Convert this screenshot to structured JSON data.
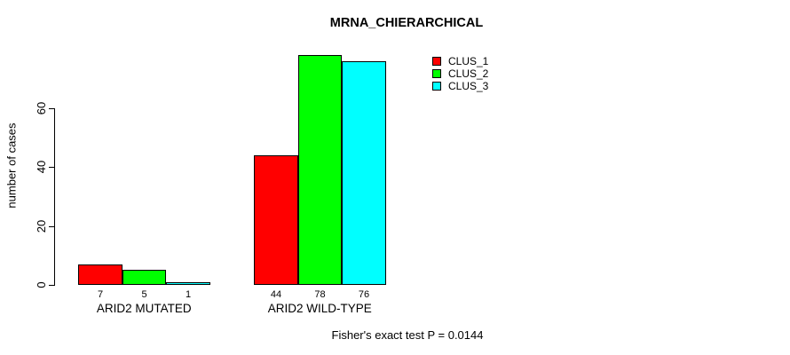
{
  "title": "MRNA_CHIERARCHICAL",
  "footer_note": "Fisher's exact test P = 0.0144",
  "chart_data": {
    "type": "bar",
    "title": "MRNA_CHIERARCHICAL",
    "xlabel": "",
    "ylabel": "number of cases",
    "categories": [
      "ARID2 MUTATED",
      "ARID2 WILD-TYPE"
    ],
    "series": [
      {
        "name": "CLUS_1",
        "color": "#ff0000",
        "values": [
          7,
          44
        ]
      },
      {
        "name": "CLUS_2",
        "color": "#00ff00",
        "values": [
          5,
          78
        ]
      },
      {
        "name": "CLUS_3",
        "color": "#00ffff",
        "values": [
          1,
          76
        ]
      }
    ],
    "bar_value_labels": [
      [
        7,
        5,
        1
      ],
      [
        44,
        78,
        76
      ]
    ],
    "yticks": [
      0,
      20,
      40,
      60
    ],
    "ylim": [
      0,
      78
    ],
    "grid": false,
    "legend_position": "top-right",
    "legend_entries": [
      "CLUS_1",
      "CLUS_2",
      "CLUS_3"
    ],
    "annotation": "Fisher's exact test P = 0.0144",
    "colors": {
      "clus_1": "#ff0000",
      "clus_2": "#00ff00",
      "clus_3": "#00ffff"
    }
  }
}
